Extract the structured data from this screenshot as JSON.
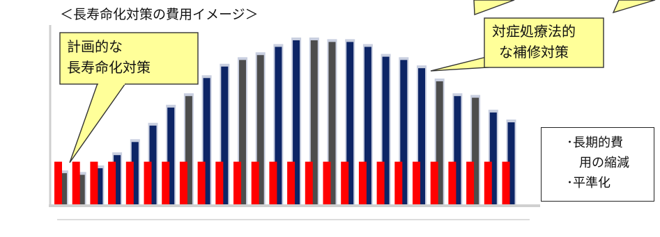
{
  "chart_data": {
    "type": "bar",
    "title": "＜長寿命化対策の費用イメージ＞",
    "ylim": [
      0,
      100
    ],
    "series": [
      {
        "name": "対症処療法的な補修対策",
        "values": [
          19,
          18,
          22,
          30,
          38,
          48,
          59,
          66,
          77,
          84,
          88,
          91,
          96,
          100,
          100,
          99,
          99,
          96,
          90,
          88,
          83,
          75,
          66,
          65,
          56,
          50
        ]
      },
      {
        "name": "計画的な長寿命化対策",
        "values": [
          26,
          26,
          26,
          26,
          26,
          26,
          26,
          26,
          26,
          26,
          26,
          26,
          26,
          26,
          26,
          26,
          26,
          26,
          26,
          26,
          26,
          26,
          26,
          26,
          26,
          26
        ]
      }
    ]
  },
  "callouts": {
    "planned": [
      "計画的な",
      "長寿命化対策"
    ],
    "reactive": [
      "対症処療法的",
      "な補修対策"
    ]
  },
  "result_box": {
    "lines": [
      "･長期的費",
      "　用の縮減",
      "･平準化"
    ]
  },
  "colors": {
    "reactive_bar": "#0d2566",
    "reactive_bar_alt": "#4d4d4d",
    "planned_bar": "#ff0000",
    "callout_fill": "#ffff99",
    "arrow_fill": "#ffff00"
  }
}
